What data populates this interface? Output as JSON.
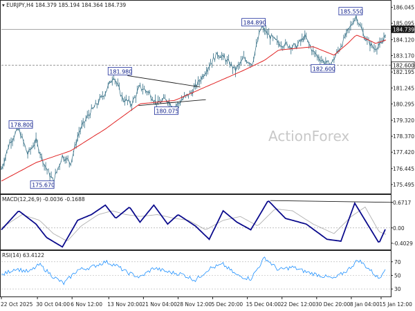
{
  "header": {
    "symbol": "EURJPY,H4",
    "ohlc": "184.379 185.194 184.364 184.739",
    "macd": "MACD(12,26,9) -0.0036 -0.1688",
    "rsi": "RSI(14) 63.4122"
  },
  "watermark": "ActionForex",
  "colors": {
    "price": "#2f6b82",
    "ma": "#e02020",
    "macd": "#0a0a8c",
    "signal": "#b0b0b0",
    "rsi": "#1e90ff",
    "trendline": "#1a1a1a",
    "label_border": "#1a2a9a"
  },
  "price_axis": {
    "ticks": [
      "186.045",
      "185.095",
      "184.120",
      "183.170",
      "182.195",
      "181.245",
      "180.295",
      "179.320",
      "178.370",
      "177.420",
      "176.445",
      "175.495"
    ],
    "tags": [
      "184.739",
      "182.600"
    ]
  },
  "macd_axis": {
    "ticks": [
      "0.6717",
      "0.00",
      "-0.4029"
    ]
  },
  "rsi_axis": {
    "ticks": [
      "70",
      "50",
      "30"
    ]
  },
  "time_axis": {
    "ticks": [
      "22 Oct 2025",
      "30 Oct 04:00",
      "6 Nov 12:00",
      "13 Nov 20:00",
      "21 Nov 04:00",
      "28 Nov 12:00",
      "5 Dec 20:00",
      "15 Dec 04:00",
      "22 Dec 12:00",
      "30 Dec 20:00",
      "8 Jan 04:00",
      "15 Jan 12:00"
    ]
  },
  "annotations": [
    "178.800",
    "175.670",
    "181.980",
    "180.075",
    "184.890",
    "185.550",
    "182.600"
  ],
  "chart_data": [
    {
      "type": "line",
      "panel": "price",
      "title": "EURJPY,H4",
      "ylim": [
        175.0,
        186.4
      ],
      "series": [
        {
          "name": "EURJPY,H4",
          "style": "bars",
          "x": [
            0,
            12,
            25,
            38,
            50,
            62,
            75,
            88,
            100,
            112,
            125,
            138,
            150,
            162,
            175,
            188,
            200,
            212,
            225,
            238,
            250,
            262,
            275,
            288,
            300,
            312,
            325,
            338,
            350,
            362,
            375,
            388,
            400,
            412,
            425,
            438,
            450,
            462,
            475,
            488,
            500,
            512,
            525,
            538,
            550,
            555
          ],
          "values": [
            176.4,
            178.0,
            178.8,
            177.3,
            178.1,
            176.7,
            175.67,
            177.2,
            176.8,
            178.6,
            179.6,
            180.3,
            181.0,
            181.98,
            180.6,
            180.3,
            181.3,
            181.0,
            180.3,
            180.6,
            180.075,
            180.6,
            181.0,
            181.8,
            182.6,
            183.3,
            182.9,
            182.3,
            183.0,
            182.7,
            184.89,
            184.3,
            183.9,
            183.8,
            183.7,
            184.3,
            183.4,
            182.9,
            182.6,
            183.6,
            184.6,
            185.55,
            184.2,
            183.6,
            183.9,
            184.739
          ]
        },
        {
          "name": "",
          "style": "ma",
          "x": [
            0,
            50,
            100,
            150,
            200,
            250,
            300,
            350,
            380,
            400,
            450,
            480,
            500,
            512,
            525,
            540,
            555
          ],
          "values": [
            175.7,
            176.8,
            177.5,
            178.8,
            180.3,
            180.5,
            181.4,
            182.3,
            182.9,
            183.5,
            183.7,
            183.2,
            183.9,
            184.4,
            184.2,
            183.9,
            184.1
          ]
        }
      ],
      "trendlines": [
        {
          "from": [
            182,
            181.98
          ],
          "to": [
            287,
            181.3
          ]
        },
        {
          "from": [
            198,
            180.2
          ],
          "to": [
            295,
            180.55
          ]
        }
      ],
      "hlines": [
        182.6
      ],
      "grid": false
    },
    {
      "type": "line",
      "panel": "macd",
      "title": "MACD(12,26,9) -0.0036 -0.1688",
      "ylim": [
        -0.55,
        0.85
      ],
      "series": [
        {
          "name": "MACD",
          "x": [
            0,
            25,
            50,
            65,
            88,
            110,
            130,
            150,
            165,
            185,
            200,
            220,
            240,
            255,
            280,
            300,
            320,
            340,
            360,
            385,
            410,
            440,
            470,
            490,
            510,
            530,
            545,
            555
          ],
          "values": [
            -0.05,
            0.45,
            0.1,
            -0.25,
            -0.5,
            0.2,
            0.35,
            0.6,
            0.25,
            0.55,
            0.15,
            0.6,
            0.1,
            0.35,
            0.05,
            -0.3,
            0.45,
            0.15,
            -0.05,
            0.72,
            0.25,
            0.1,
            -0.3,
            -0.35,
            0.65,
            0.05,
            -0.4,
            0.0
          ]
        },
        {
          "name": "Signal",
          "x": [
            0,
            30,
            55,
            75,
            95,
            115,
            140,
            160,
            180,
            200,
            225,
            250,
            270,
            295,
            320,
            345,
            370,
            395,
            420,
            450,
            480,
            505,
            525,
            545,
            555
          ],
          "values": [
            0.0,
            0.35,
            0.2,
            -0.15,
            -0.35,
            0.05,
            0.35,
            0.45,
            0.35,
            0.3,
            0.35,
            0.25,
            0.2,
            -0.05,
            0.2,
            0.3,
            0.05,
            0.5,
            0.45,
            0.1,
            -0.15,
            0.3,
            0.55,
            -0.1,
            -0.17
          ]
        }
      ],
      "trendlines": [
        {
          "from": [
            388,
            0.72
          ],
          "to": [
            565,
            0.6717
          ]
        }
      ],
      "hlines": [
        0.0
      ],
      "grid": false
    },
    {
      "type": "line",
      "panel": "rsi",
      "title": "RSI(14) 63.4122",
      "ylim": [
        20,
        85
      ],
      "series": [
        {
          "name": "RSI(14)",
          "x": [
            0,
            20,
            40,
            55,
            75,
            90,
            110,
            130,
            150,
            165,
            180,
            200,
            220,
            240,
            260,
            280,
            300,
            320,
            340,
            360,
            380,
            400,
            420,
            440,
            460,
            480,
            500,
            515,
            530,
            545,
            555
          ],
          "values": [
            50,
            60,
            55,
            66,
            48,
            38,
            58,
            62,
            70,
            65,
            55,
            47,
            61,
            55,
            52,
            43,
            60,
            66,
            50,
            45,
            76,
            58,
            62,
            55,
            50,
            45,
            58,
            73,
            60,
            45,
            63.4
          ]
        }
      ],
      "hlines": [
        70,
        50,
        30
      ],
      "grid": false
    }
  ]
}
